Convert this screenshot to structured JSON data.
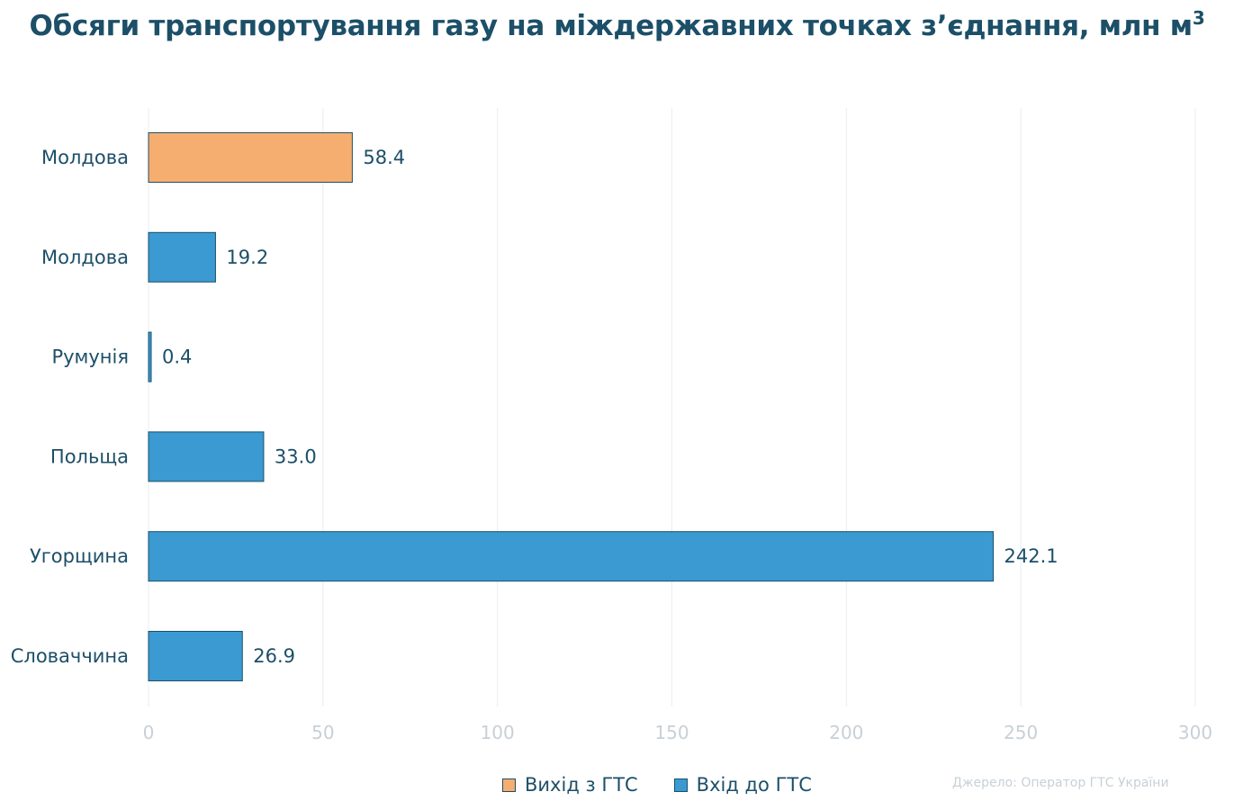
{
  "title": "Обсяги транспортування газу на міждержавних точках з’єднання, млн м",
  "title_sup": "3",
  "source": "Джерело: Оператор ГТС України",
  "colors": {
    "exit": "#f5ae70",
    "entry": "#3a9ad1",
    "text": "#1c4f68",
    "grid": "#e9ecef",
    "tick": "#c8d0d6"
  },
  "legend": [
    {
      "label": "Вихід з ГТС",
      "color": "#f5ae70"
    },
    {
      "label": "Вхід до ГТС",
      "color": "#3a9ad1"
    }
  ],
  "chart_data": {
    "type": "bar",
    "orientation": "horizontal",
    "categories": [
      "Молдова",
      "Молдова",
      "Румунія",
      "Польща",
      "Угорщина",
      "Словаччина"
    ],
    "values": [
      58.4,
      19.2,
      0.4,
      33.0,
      242.1,
      26.9
    ],
    "value_labels": [
      "58.4",
      "19.2",
      "0.4",
      "33.0",
      "242.1",
      "26.9"
    ],
    "series_of_bar": [
      "Вихід з ГТС",
      "Вхід до ГТС",
      "Вхід до ГТС",
      "Вхід до ГТС",
      "Вхід до ГТС",
      "Вхід до ГТС"
    ],
    "xlim": [
      0,
      300
    ],
    "xticks": [
      0,
      50,
      100,
      150,
      200,
      250,
      300
    ],
    "grid": true,
    "legend_position": "bottom"
  }
}
